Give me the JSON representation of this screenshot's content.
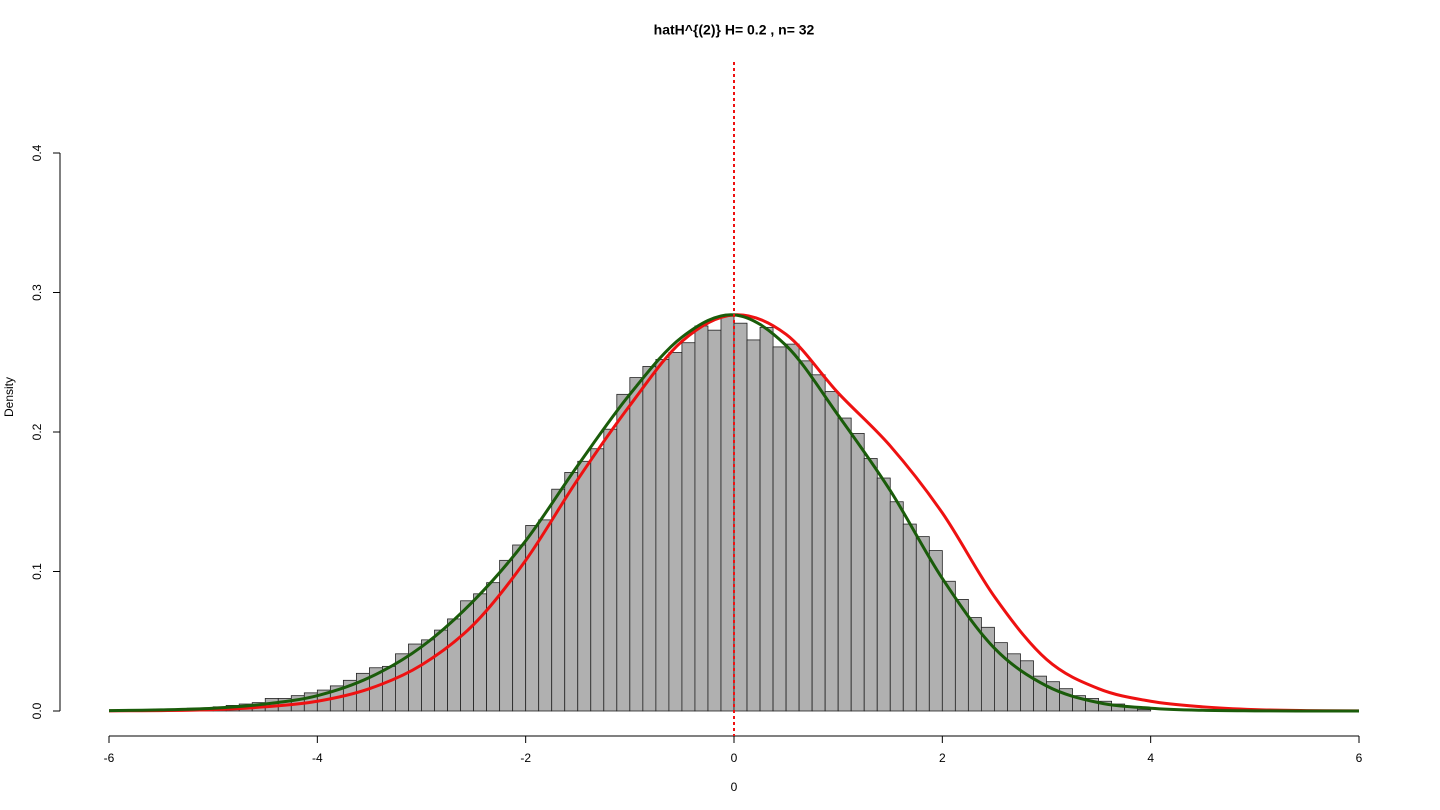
{
  "chart_data": {
    "type": "histogram",
    "title": "hatH^{(2)} H= 0.2 , n= 32",
    "xlabel": "0",
    "ylabel": "Density",
    "bins": [
      -5.5,
      -5.375,
      -5.25,
      -5.125,
      -5,
      -4.875,
      -4.75,
      -4.625,
      -4.5,
      -4.375,
      -4.25,
      -4.125,
      -4,
      -3.875,
      -3.75,
      -3.625,
      -3.5,
      -3.375,
      -3.25,
      -3.125,
      -3,
      -2.875,
      -2.75,
      -2.625,
      -2.5,
      -2.375,
      -2.25,
      -2.125,
      -2,
      -1.875,
      -1.75,
      -1.625,
      -1.5,
      -1.375,
      -1.25,
      -1.125,
      -1,
      -0.875,
      -0.75,
      -0.625,
      -0.5,
      -0.375,
      -0.25,
      -0.125,
      0,
      0.125,
      0.25,
      0.375,
      0.5,
      0.625,
      0.75,
      0.875,
      1,
      1.125,
      1.25,
      1.375,
      1.5,
      1.625,
      1.75,
      1.875,
      2,
      2.125,
      2.25,
      2.375,
      2.5,
      2.625,
      2.75,
      2.875,
      3,
      3.125,
      3.25,
      3.375,
      3.5,
      3.625,
      3.75,
      3.875,
      4
    ],
    "values": [
      0.001,
      0.001,
      0.002,
      0.002,
      0.003,
      0.004,
      0.005,
      0.006,
      0.009,
      0.009,
      0.011,
      0.013,
      0.015,
      0.018,
      0.022,
      0.027,
      0.031,
      0.032,
      0.041,
      0.048,
      0.051,
      0.058,
      0.066,
      0.079,
      0.084,
      0.092,
      0.108,
      0.119,
      0.133,
      0.137,
      0.159,
      0.171,
      0.179,
      0.188,
      0.202,
      0.227,
      0.239,
      0.247,
      0.252,
      0.257,
      0.264,
      0.276,
      0.273,
      0.283,
      0.278,
      0.266,
      0.275,
      0.261,
      0.263,
      0.251,
      0.241,
      0.229,
      0.21,
      0.199,
      0.181,
      0.167,
      0.15,
      0.134,
      0.125,
      0.115,
      0.093,
      0.08,
      0.067,
      0.06,
      0.049,
      0.041,
      0.036,
      0.025,
      0.021,
      0.016,
      0.011,
      0.009,
      0.007,
      0.005,
      0.003,
      0.001
    ],
    "color": "#b0b0b0",
    "overlays": [
      {
        "type": "line",
        "color": "#ee1111",
        "x": [
          -6,
          -5.5,
          -5,
          -4.5,
          -4,
          -3.5,
          -3,
          -2.5,
          -2,
          -1.5,
          -1,
          -0.5,
          0,
          0.5,
          1,
          1.5,
          2,
          2.5,
          3,
          3.5,
          4,
          4.5,
          5,
          5.5,
          6
        ],
        "values": [
          0.0001,
          0.0003,
          0.001,
          0.003,
          0.007,
          0.016,
          0.033,
          0.062,
          0.108,
          0.166,
          0.219,
          0.265,
          0.284,
          0.27,
          0.228,
          0.19,
          0.142,
          0.082,
          0.037,
          0.016,
          0.007,
          0.003,
          0.001,
          0.0003,
          0.0001
        ]
      },
      {
        "type": "line",
        "color": "#1a5c0a",
        "x": [
          -6,
          -5.5,
          -5,
          -4.5,
          -4,
          -3.5,
          -3,
          -2.5,
          -2,
          -1.5,
          -1,
          -0.5,
          0,
          0.5,
          1,
          1.5,
          2,
          2.5,
          3,
          3.5,
          4,
          4.5,
          5,
          5.5,
          6
        ],
        "values": [
          0.0003,
          0.0008,
          0.002,
          0.005,
          0.011,
          0.024,
          0.046,
          0.079,
          0.122,
          0.176,
          0.227,
          0.268,
          0.284,
          0.262,
          0.212,
          0.158,
          0.095,
          0.045,
          0.018,
          0.006,
          0.002,
          0.0005,
          0.0001,
          0,
          0
        ]
      }
    ],
    "vline": {
      "x": 0,
      "color": "#ee1111"
    },
    "xlim": [
      -6,
      6
    ],
    "xticks": [
      -6,
      -4,
      -2,
      0,
      2,
      4,
      6
    ],
    "ylim": [
      0,
      0.4
    ],
    "yticks": [
      {
        "value": 0,
        "label": "0.0"
      },
      0.1,
      0.2,
      0.3,
      0.4
    ]
  }
}
